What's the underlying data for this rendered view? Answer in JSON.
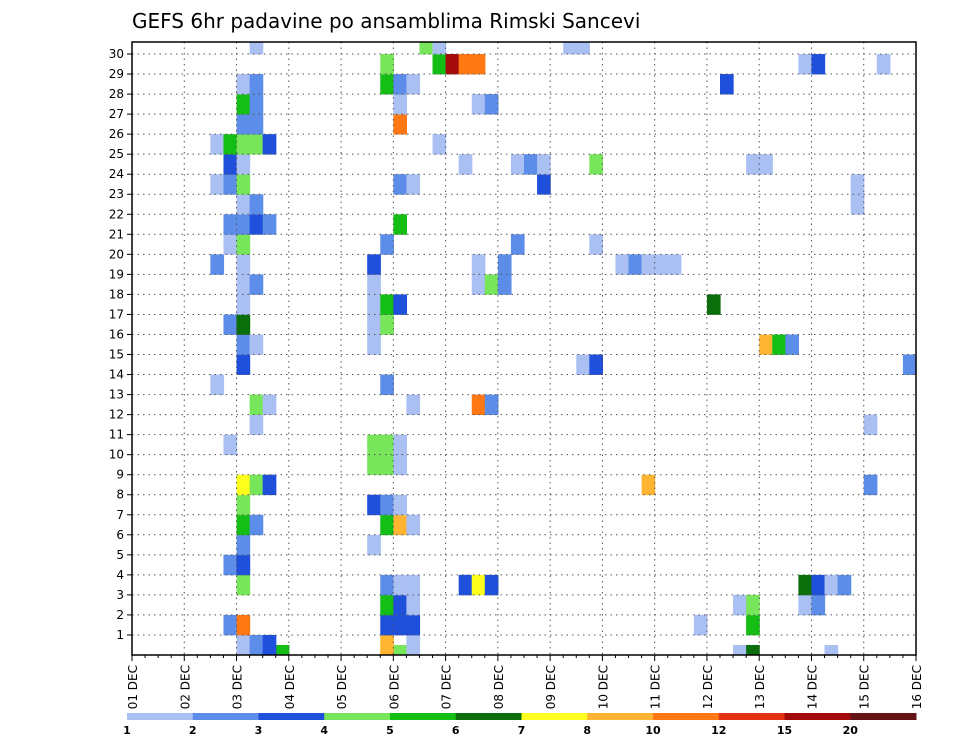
{
  "chart_data": {
    "type": "heatmap",
    "title": "GEFS 6hr padavine po ansamblima Rimski Sancevi",
    "x_tick_labels": [
      "01 DEC",
      "02 DEC",
      "03 DEC",
      "04 DEC",
      "05 DEC",
      "06 DEC",
      "07 DEC",
      "08 DEC",
      "09 DEC",
      "10 DEC",
      "11 DEC",
      "12 DEC",
      "13 DEC",
      "14 DEC",
      "15 DEC",
      "16 DEC"
    ],
    "y_tick_labels": [
      "1",
      "2",
      "3",
      "4",
      "5",
      "6",
      "7",
      "8",
      "9",
      "10",
      "11",
      "12",
      "13",
      "14",
      "15",
      "16",
      "17",
      "18",
      "19",
      "20",
      "21",
      "22",
      "23",
      "24",
      "25",
      "26",
      "27",
      "28",
      "29",
      "30"
    ],
    "x_range": [
      "01 DEC",
      "16 DEC"
    ],
    "y_range": [
      0,
      30
    ],
    "time_step_hours": 6,
    "grid": true,
    "colorbar": {
      "tick_labels": [
        "1",
        "2",
        "3",
        "4",
        "5",
        "6",
        "7",
        "8",
        "10",
        "12",
        "15",
        "20"
      ],
      "colors": [
        "#aabff2",
        "#5c8de8",
        "#1e50dc",
        "#78e65a",
        "#14be14",
        "#0a6e0a",
        "#ffff1e",
        "#ffb432",
        "#ff7814",
        "#e63214",
        "#a50a0a",
        "#641414"
      ]
    },
    "cells": [
      [
        2.5,
        -0.5,
        "#aabff2"
      ],
      [
        2.75,
        -0.5,
        "#14be14"
      ],
      [
        4.75,
        -0.5,
        "#ffff1e"
      ],
      [
        5.0,
        -0.5,
        "#78e65a"
      ],
      [
        11.5,
        -0.5,
        "#aabff2"
      ],
      [
        11.75,
        -0.5,
        "#0a6e0a"
      ],
      [
        13.25,
        -0.5,
        "#aabff2"
      ],
      [
        2.0,
        0,
        "#aabff2"
      ],
      [
        2.25,
        0,
        "#5c8de8"
      ],
      [
        2.5,
        0,
        "#1e50dc"
      ],
      [
        4.75,
        0,
        "#ffb432"
      ],
      [
        5.25,
        0,
        "#aabff2"
      ],
      [
        1.75,
        1,
        "#5c8de8"
      ],
      [
        2.0,
        1,
        "#ff7814"
      ],
      [
        4.75,
        1,
        "#1e50dc"
      ],
      [
        5.0,
        1,
        "#1e50dc"
      ],
      [
        5.25,
        1,
        "#1e50dc"
      ],
      [
        10.75,
        1,
        "#aabff2"
      ],
      [
        11.75,
        1,
        "#14be14"
      ],
      [
        4.75,
        2,
        "#14be14"
      ],
      [
        5.0,
        2,
        "#1e50dc"
      ],
      [
        5.25,
        2,
        "#aabff2"
      ],
      [
        11.5,
        2,
        "#aabff2"
      ],
      [
        11.75,
        2,
        "#78e65a"
      ],
      [
        12.75,
        2,
        "#aabff2"
      ],
      [
        13.0,
        2,
        "#5c8de8"
      ],
      [
        2.0,
        3,
        "#78e65a"
      ],
      [
        4.75,
        3,
        "#5c8de8"
      ],
      [
        5.0,
        3,
        "#aabff2"
      ],
      [
        5.25,
        3,
        "#aabff2"
      ],
      [
        6.25,
        3,
        "#1e50dc"
      ],
      [
        6.5,
        3,
        "#ffff1e"
      ],
      [
        6.75,
        3,
        "#1e50dc"
      ],
      [
        12.75,
        3,
        "#0a6e0a"
      ],
      [
        13.0,
        3,
        "#1e50dc"
      ],
      [
        13.25,
        3,
        "#aabff2"
      ],
      [
        13.5,
        3,
        "#5c8de8"
      ],
      [
        1.75,
        4,
        "#5c8de8"
      ],
      [
        2.0,
        4,
        "#1e50dc"
      ],
      [
        2.0,
        5,
        "#5c8de8"
      ],
      [
        4.5,
        5,
        "#aabff2"
      ],
      [
        2.0,
        6,
        "#14be14"
      ],
      [
        2.25,
        6,
        "#5c8de8"
      ],
      [
        4.75,
        6,
        "#14be14"
      ],
      [
        5.0,
        6,
        "#ffb432"
      ],
      [
        5.25,
        6,
        "#aabff2"
      ],
      [
        2.0,
        7,
        "#78e65a"
      ],
      [
        4.5,
        7,
        "#1e50dc"
      ],
      [
        4.75,
        7,
        "#5c8de8"
      ],
      [
        5.0,
        7,
        "#aabff2"
      ],
      [
        2.0,
        8,
        "#ffff1e"
      ],
      [
        2.25,
        8,
        "#78e65a"
      ],
      [
        2.5,
        8,
        "#1e50dc"
      ],
      [
        9.75,
        8,
        "#ffb432"
      ],
      [
        14.0,
        8,
        "#5c8de8"
      ],
      [
        4.5,
        9,
        "#78e65a"
      ],
      [
        4.75,
        9,
        "#78e65a"
      ],
      [
        5.0,
        9,
        "#aabff2"
      ],
      [
        1.75,
        10,
        "#aabff2"
      ],
      [
        4.5,
        10,
        "#78e65a"
      ],
      [
        4.75,
        10,
        "#78e65a"
      ],
      [
        5.0,
        10,
        "#aabff2"
      ],
      [
        2.25,
        11,
        "#aabff2"
      ],
      [
        14.0,
        11,
        "#aabff2"
      ],
      [
        2.25,
        12,
        "#78e65a"
      ],
      [
        2.5,
        12,
        "#aabff2"
      ],
      [
        5.25,
        12,
        "#aabff2"
      ],
      [
        6.5,
        12,
        "#ff7814"
      ],
      [
        6.75,
        12,
        "#5c8de8"
      ],
      [
        1.5,
        13,
        "#aabff2"
      ],
      [
        4.75,
        13,
        "#5c8de8"
      ],
      [
        2.0,
        14,
        "#1e50dc"
      ],
      [
        8.5,
        14,
        "#aabff2"
      ],
      [
        8.75,
        14,
        "#1e50dc"
      ],
      [
        14.75,
        14,
        "#5c8de8"
      ],
      [
        2.0,
        15,
        "#5c8de8"
      ],
      [
        2.25,
        15,
        "#aabff2"
      ],
      [
        4.5,
        15,
        "#aabff2"
      ],
      [
        12.0,
        15,
        "#ffb432"
      ],
      [
        12.25,
        15,
        "#14be14"
      ],
      [
        12.5,
        15,
        "#5c8de8"
      ],
      [
        1.75,
        16,
        "#5c8de8"
      ],
      [
        2.0,
        16,
        "#0a6e0a"
      ],
      [
        4.5,
        16,
        "#aabff2"
      ],
      [
        4.75,
        16,
        "#78e65a"
      ],
      [
        2.0,
        17,
        "#aabff2"
      ],
      [
        4.5,
        17,
        "#aabff2"
      ],
      [
        4.75,
        17,
        "#14be14"
      ],
      [
        5.0,
        17,
        "#1e50dc"
      ],
      [
        11.0,
        17,
        "#0a6e0a"
      ],
      [
        2.0,
        18,
        "#aabff2"
      ],
      [
        2.25,
        18,
        "#5c8de8"
      ],
      [
        4.5,
        18,
        "#aabff2"
      ],
      [
        6.5,
        18,
        "#aabff2"
      ],
      [
        6.75,
        18,
        "#78e65a"
      ],
      [
        7.0,
        18,
        "#5c8de8"
      ],
      [
        1.5,
        19,
        "#5c8de8"
      ],
      [
        2.0,
        19,
        "#aabff2"
      ],
      [
        4.5,
        19,
        "#1e50dc"
      ],
      [
        6.5,
        19,
        "#aabff2"
      ],
      [
        7.0,
        19,
        "#5c8de8"
      ],
      [
        9.25,
        19,
        "#aabff2"
      ],
      [
        9.5,
        19,
        "#5c8de8"
      ],
      [
        9.75,
        19,
        "#aabff2"
      ],
      [
        10.0,
        19,
        "#aabff2"
      ],
      [
        10.25,
        19,
        "#aabff2"
      ],
      [
        1.75,
        20,
        "#aabff2"
      ],
      [
        2.0,
        20,
        "#78e65a"
      ],
      [
        4.75,
        20,
        "#5c8de8"
      ],
      [
        7.25,
        20,
        "#5c8de8"
      ],
      [
        8.75,
        20,
        "#aabff2"
      ],
      [
        1.75,
        21,
        "#5c8de8"
      ],
      [
        2.0,
        21,
        "#5c8de8"
      ],
      [
        2.25,
        21,
        "#1e50dc"
      ],
      [
        2.5,
        21,
        "#5c8de8"
      ],
      [
        5.0,
        21,
        "#14be14"
      ],
      [
        2.0,
        22,
        "#aabff2"
      ],
      [
        2.25,
        22,
        "#5c8de8"
      ],
      [
        13.75,
        22,
        "#aabff2"
      ],
      [
        1.5,
        23,
        "#aabff2"
      ],
      [
        1.75,
        23,
        "#5c8de8"
      ],
      [
        2.0,
        23,
        "#78e65a"
      ],
      [
        5.0,
        23,
        "#5c8de8"
      ],
      [
        5.25,
        23,
        "#aabff2"
      ],
      [
        7.75,
        23,
        "#1e50dc"
      ],
      [
        13.75,
        23,
        "#aabff2"
      ],
      [
        1.75,
        24,
        "#1e50dc"
      ],
      [
        2.0,
        24,
        "#aabff2"
      ],
      [
        6.25,
        24,
        "#aabff2"
      ],
      [
        7.25,
        24,
        "#aabff2"
      ],
      [
        7.5,
        24,
        "#5c8de8"
      ],
      [
        7.75,
        24,
        "#aabff2"
      ],
      [
        8.75,
        24,
        "#78e65a"
      ],
      [
        11.75,
        24,
        "#aabff2"
      ],
      [
        12.0,
        24,
        "#aabff2"
      ],
      [
        1.5,
        25,
        "#aabff2"
      ],
      [
        1.75,
        25,
        "#14be14"
      ],
      [
        2.0,
        25,
        "#78e65a"
      ],
      [
        2.25,
        25,
        "#78e65a"
      ],
      [
        2.5,
        25,
        "#1e50dc"
      ],
      [
        5.75,
        25,
        "#aabff2"
      ],
      [
        2.0,
        26,
        "#5c8de8"
      ],
      [
        2.25,
        26,
        "#5c8de8"
      ],
      [
        5.0,
        26,
        "#ff7814"
      ],
      [
        2.0,
        27,
        "#14be14"
      ],
      [
        2.25,
        27,
        "#5c8de8"
      ],
      [
        5.0,
        27,
        "#aabff2"
      ],
      [
        6.5,
        27,
        "#aabff2"
      ],
      [
        6.75,
        27,
        "#5c8de8"
      ],
      [
        2.0,
        28,
        "#aabff2"
      ],
      [
        2.25,
        28,
        "#5c8de8"
      ],
      [
        4.75,
        28,
        "#14be14"
      ],
      [
        5.0,
        28,
        "#5c8de8"
      ],
      [
        5.25,
        28,
        "#aabff2"
      ],
      [
        11.25,
        28,
        "#1e50dc"
      ],
      [
        4.75,
        29,
        "#78e65a"
      ],
      [
        5.75,
        29,
        "#14be14"
      ],
      [
        6.0,
        29,
        "#a50a0a"
      ],
      [
        6.25,
        29,
        "#ff7814"
      ],
      [
        6.5,
        29,
        "#ff7814"
      ],
      [
        12.75,
        29,
        "#aabff2"
      ],
      [
        13.0,
        29,
        "#1e50dc"
      ],
      [
        14.25,
        29,
        "#aabff2"
      ],
      [
        2.25,
        30,
        "#aabff2"
      ],
      [
        5.5,
        30,
        "#78e65a"
      ],
      [
        5.75,
        30,
        "#aabff2"
      ],
      [
        8.25,
        30,
        "#aabff2"
      ],
      [
        8.5,
        30,
        "#aabff2"
      ]
    ]
  }
}
